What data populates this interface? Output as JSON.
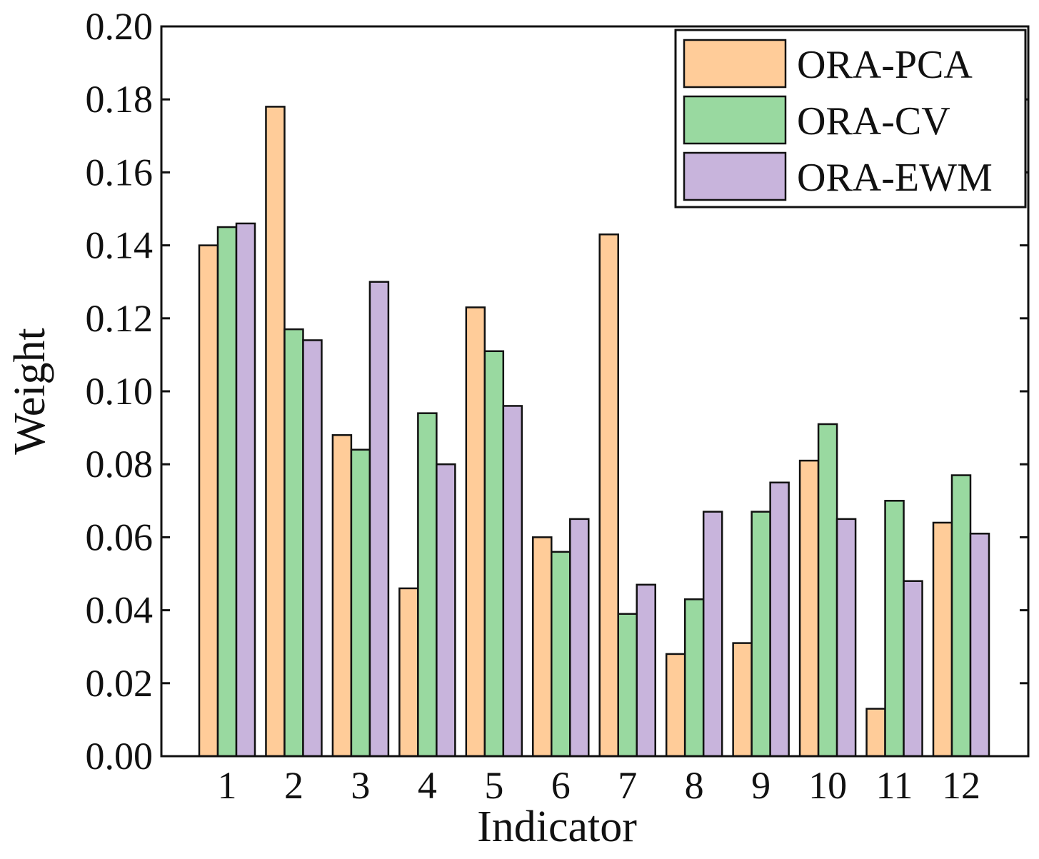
{
  "chart_data": {
    "type": "bar",
    "title": "",
    "xlabel": "Indicator",
    "ylabel": "Weight",
    "ylim": [
      0,
      0.2
    ],
    "yticks": [
      "0.00",
      "0.02",
      "0.04",
      "0.06",
      "0.08",
      "0.10",
      "0.12",
      "0.14",
      "0.16",
      "0.18",
      "0.20"
    ],
    "categories": [
      "1",
      "2",
      "3",
      "4",
      "5",
      "6",
      "7",
      "8",
      "9",
      "10",
      "11",
      "12"
    ],
    "legend_position": "top-right",
    "series": [
      {
        "name": "ORA-PCA",
        "color": "#FFCC99",
        "values": [
          0.14,
          0.178,
          0.088,
          0.046,
          0.123,
          0.06,
          0.143,
          0.028,
          0.031,
          0.081,
          0.013,
          0.064
        ]
      },
      {
        "name": "ORA-CV",
        "color": "#99D9A0",
        "values": [
          0.145,
          0.117,
          0.084,
          0.094,
          0.111,
          0.056,
          0.039,
          0.043,
          0.067,
          0.091,
          0.07,
          0.077
        ]
      },
      {
        "name": "ORA-EWM",
        "color": "#C8B4DC",
        "values": [
          0.146,
          0.114,
          0.13,
          0.08,
          0.096,
          0.065,
          0.047,
          0.067,
          0.075,
          0.065,
          0.048,
          0.061
        ]
      }
    ]
  }
}
